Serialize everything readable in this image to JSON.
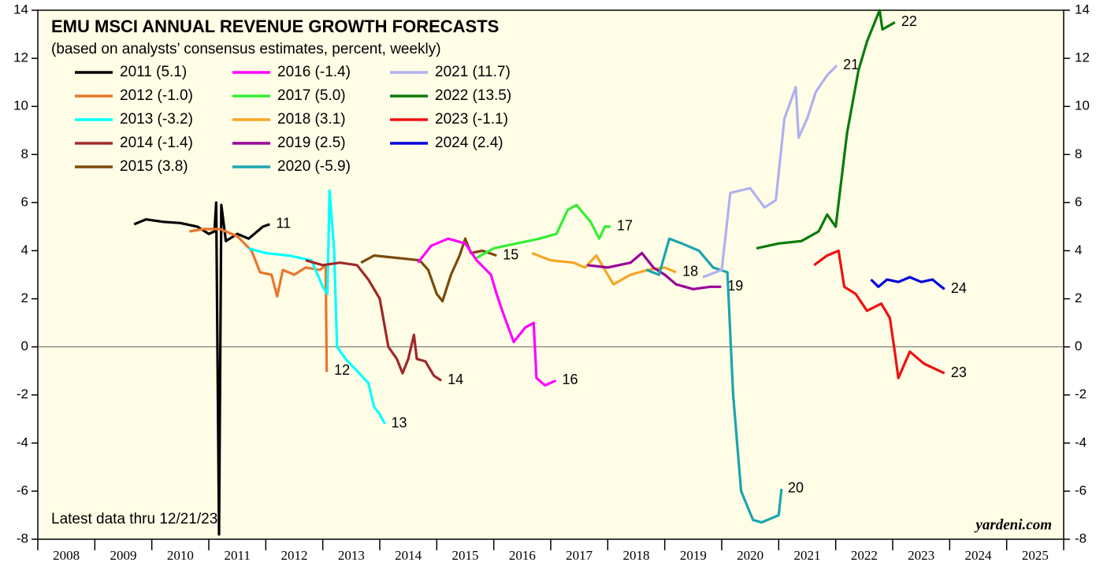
{
  "chart_data": {
    "type": "line",
    "title": "EMU MSCI ANNUAL REVENUE GROWTH FORECASTS",
    "subtitle": "(based on analysts’ consensus estimates, percent, weekly)",
    "annotations": [
      "Latest data thru 12/21/23",
      "yardeni.com"
    ],
    "xlim": [
      2008,
      2026
    ],
    "xticks": [
      2008,
      2009,
      2010,
      2011,
      2012,
      2013,
      2014,
      2015,
      2016,
      2017,
      2018,
      2019,
      2020,
      2021,
      2022,
      2023,
      2024,
      2025
    ],
    "ylim": [
      -8,
      14
    ],
    "yticks": [
      -8,
      -6,
      -4,
      -2,
      0,
      2,
      4,
      6,
      8,
      10,
      12,
      14
    ],
    "series": [
      {
        "name": "2011 (5.1)",
        "label": "11",
        "color": "#000000",
        "x": [
          2009.69,
          2009.9,
          2010.2,
          2010.5,
          2010.8,
          2011.0,
          2011.1,
          2011.13,
          2011.18,
          2011.22,
          2011.3,
          2011.5,
          2011.7,
          2011.85,
          2011.95,
          2012.07
        ],
        "values": [
          5.1,
          5.3,
          5.2,
          5.15,
          5.0,
          4.7,
          4.8,
          6.0,
          -7.8,
          5.9,
          4.4,
          4.7,
          4.5,
          4.8,
          5.0,
          5.1
        ]
      },
      {
        "name": "2012 (-1.0)",
        "label": "12",
        "color": "#e8762d",
        "x": [
          2010.66,
          2010.9,
          2011.2,
          2011.5,
          2011.75,
          2011.9,
          2012.1,
          2012.2,
          2012.3,
          2012.5,
          2012.7,
          2012.95,
          2013.05,
          2013.07,
          2013.09
        ],
        "values": [
          4.8,
          4.9,
          4.9,
          4.6,
          4.0,
          3.1,
          3.0,
          2.1,
          3.2,
          3.0,
          3.3,
          3.2,
          3.4,
          -1.0,
          -1.0
        ]
      },
      {
        "name": "2013 (-3.2)",
        "label": "13",
        "color": "#00ffff",
        "x": [
          2011.7,
          2012.0,
          2012.4,
          2012.8,
          2013.0,
          2013.08,
          2013.12,
          2013.2,
          2013.25,
          2013.4,
          2013.6,
          2013.8,
          2013.9,
          2014.0,
          2014.09
        ],
        "values": [
          4.1,
          3.9,
          3.8,
          3.6,
          2.5,
          2.2,
          6.5,
          4.0,
          0.0,
          -0.5,
          -1.0,
          -1.5,
          -2.5,
          -2.8,
          -3.2
        ]
      },
      {
        "name": "2014 (-1.4)",
        "label": "14",
        "color": "#a0282a",
        "x": [
          2012.7,
          2013.0,
          2013.3,
          2013.6,
          2013.8,
          2014.0,
          2014.15,
          2014.3,
          2014.4,
          2014.5,
          2014.6,
          2014.65,
          2014.8,
          2014.95,
          2015.08
        ],
        "values": [
          3.6,
          3.4,
          3.5,
          3.4,
          2.8,
          2.0,
          0.0,
          -0.5,
          -1.1,
          -0.5,
          0.5,
          -0.5,
          -0.6,
          -1.2,
          -1.4
        ]
      },
      {
        "name": "2015 (3.8)",
        "label": "15",
        "color": "#7b4a0a",
        "x": [
          2013.67,
          2013.9,
          2014.3,
          2014.7,
          2014.85,
          2015.0,
          2015.1,
          2015.25,
          2015.4,
          2015.5,
          2015.6,
          2015.8,
          2016.05
        ],
        "values": [
          3.5,
          3.8,
          3.7,
          3.6,
          3.2,
          2.2,
          1.9,
          3.0,
          3.8,
          4.5,
          3.9,
          4.0,
          3.8
        ]
      },
      {
        "name": "2016 (-1.4)",
        "label": "16",
        "color": "#ff00ff",
        "x": [
          2014.67,
          2014.9,
          2015.2,
          2015.5,
          2015.7,
          2015.95,
          2016.05,
          2016.15,
          2016.35,
          2016.55,
          2016.7,
          2016.75,
          2016.9,
          2017.09
        ],
        "values": [
          3.5,
          4.2,
          4.5,
          4.3,
          3.6,
          3.0,
          2.2,
          1.5,
          0.2,
          0.8,
          1.0,
          -1.3,
          -1.6,
          -1.4
        ]
      },
      {
        "name": "2017 (5.0)",
        "label": "17",
        "color": "#33ee33",
        "x": [
          2015.7,
          2016.0,
          2016.4,
          2016.8,
          2017.1,
          2017.3,
          2017.45,
          2017.7,
          2017.85,
          2017.95,
          2018.05
        ],
        "values": [
          3.7,
          4.1,
          4.3,
          4.5,
          4.7,
          5.7,
          5.9,
          5.2,
          4.5,
          5.0,
          5.0
        ]
      },
      {
        "name": "2018 (3.1)",
        "label": "18",
        "color": "#f5a623",
        "x": [
          2016.67,
          2017.0,
          2017.4,
          2017.6,
          2017.8,
          2017.95,
          2018.1,
          2018.4,
          2018.7,
          2019.0,
          2019.2
        ],
        "values": [
          3.9,
          3.6,
          3.5,
          3.3,
          3.8,
          3.2,
          2.6,
          3.0,
          3.2,
          3.3,
          3.1
        ]
      },
      {
        "name": "2019 (2.5)",
        "label": "19",
        "color": "#990099",
        "x": [
          2017.64,
          2018.0,
          2018.4,
          2018.6,
          2018.8,
          2019.0,
          2019.2,
          2019.5,
          2019.8,
          2019.99
        ],
        "values": [
          3.4,
          3.3,
          3.5,
          3.9,
          3.3,
          3.0,
          2.6,
          2.4,
          2.5,
          2.5
        ]
      },
      {
        "name": "2020 (-5.9)",
        "label": "20",
        "color": "#1aa5b0",
        "x": [
          2018.68,
          2018.9,
          2019.08,
          2019.3,
          2019.6,
          2019.85,
          2020.1,
          2020.2,
          2020.34,
          2020.55,
          2020.7,
          2020.9,
          2021.0,
          2021.05
        ],
        "values": [
          3.2,
          3.0,
          4.5,
          4.3,
          4.0,
          3.3,
          3.1,
          -2.0,
          -6.0,
          -7.2,
          -7.3,
          -7.1,
          -7.0,
          -5.9
        ]
      },
      {
        "name": "2021 (11.7)",
        "label": "21",
        "color": "#b0b0f0",
        "x": [
          2019.67,
          2020.0,
          2020.15,
          2020.5,
          2020.75,
          2020.95,
          2021.1,
          2021.3,
          2021.35,
          2021.5,
          2021.65,
          2021.85,
          2022.02
        ],
        "values": [
          2.9,
          3.2,
          6.4,
          6.6,
          5.8,
          6.1,
          9.5,
          10.8,
          8.7,
          9.5,
          10.6,
          11.3,
          11.7
        ]
      },
      {
        "name": "2022 (13.5)",
        "label": "22",
        "color": "#0b7a0b",
        "x": [
          2020.61,
          2021.0,
          2021.4,
          2021.7,
          2021.85,
          2022.0,
          2022.2,
          2022.4,
          2022.55,
          2022.77,
          2022.82,
          2023.04
        ],
        "values": [
          4.1,
          4.3,
          4.4,
          4.8,
          5.5,
          5.0,
          8.9,
          11.5,
          12.7,
          14.0,
          13.2,
          13.5
        ]
      },
      {
        "name": "2023 (-1.1)",
        "label": "23",
        "color": "#ee1111",
        "x": [
          2021.62,
          2021.85,
          2022.05,
          2022.15,
          2022.35,
          2022.55,
          2022.8,
          2022.95,
          2023.03,
          2023.1,
          2023.3,
          2023.55,
          2023.91
        ],
        "values": [
          3.4,
          3.8,
          4.0,
          2.5,
          2.2,
          1.5,
          1.8,
          1.2,
          -0.1,
          -1.3,
          -0.2,
          -0.7,
          -1.1
        ]
      },
      {
        "name": "2024 (2.4)",
        "label": "24",
        "color": "#0000dd",
        "x": [
          2022.62,
          2022.75,
          2022.9,
          2023.1,
          2023.3,
          2023.5,
          2023.7,
          2023.8,
          2023.91
        ],
        "values": [
          2.8,
          2.5,
          2.8,
          2.7,
          2.9,
          2.7,
          2.8,
          2.6,
          2.4
        ]
      }
    ]
  }
}
